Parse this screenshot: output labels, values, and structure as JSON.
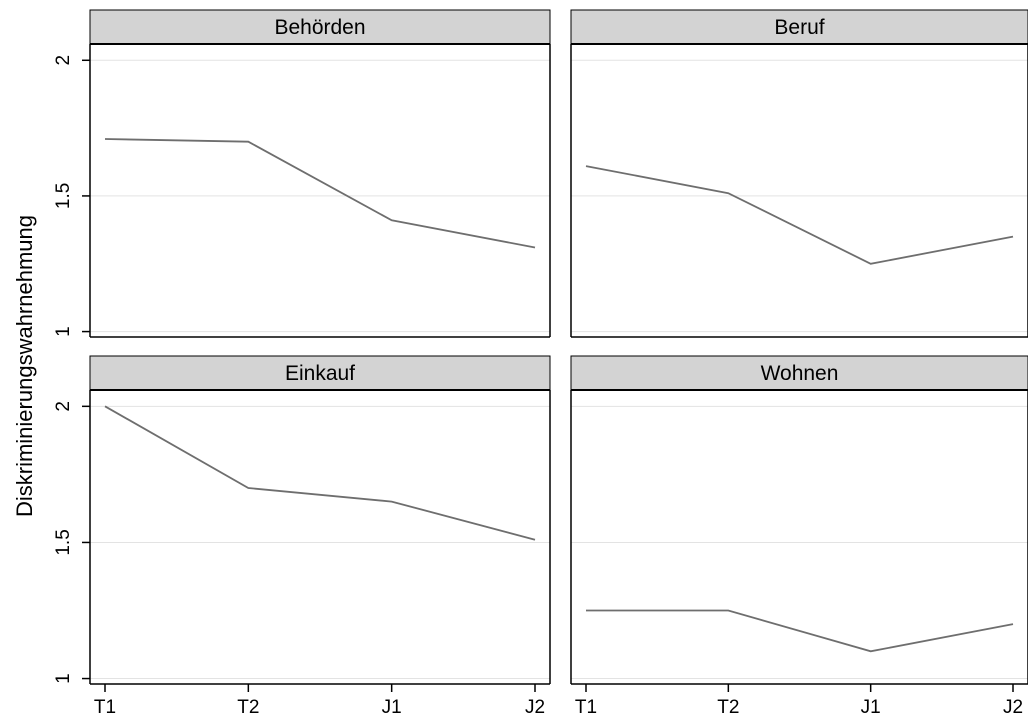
{
  "chart_data": {
    "type": "line",
    "ylabel": "Diskriminierungswahrnehmung",
    "xlabel": "",
    "categories": [
      "T1",
      "T2",
      "J1",
      "J2"
    ],
    "ylim": [
      0.98,
      2.06
    ],
    "yticks": [
      1,
      1.5,
      2
    ],
    "ytick_labels": [
      "1",
      "1.5",
      "2"
    ],
    "grid": "horizontal",
    "line_color": "#6e6e6e",
    "strip_color": "#d3d3d3",
    "panels": [
      {
        "title": "Behörden",
        "values": [
          1.71,
          1.7,
          1.41,
          1.31
        ]
      },
      {
        "title": "Beruf",
        "values": [
          1.61,
          1.51,
          1.25,
          1.35
        ]
      },
      {
        "title": "Einkauf",
        "values": [
          2.0,
          1.7,
          1.65,
          1.51
        ]
      },
      {
        "title": "Wohnen",
        "values": [
          1.25,
          1.25,
          1.1,
          1.2
        ]
      }
    ]
  }
}
